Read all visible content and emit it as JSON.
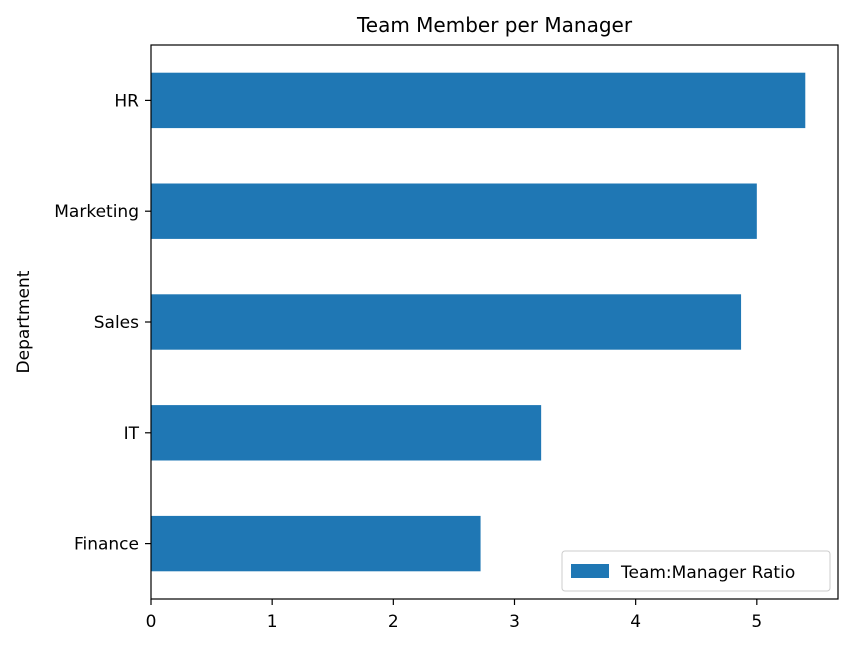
{
  "chart_data": {
    "type": "bar",
    "orientation": "horizontal",
    "title": "Team Member per Manager",
    "xlabel": "",
    "ylabel": "Department",
    "categories": [
      "Finance",
      "IT",
      "Sales",
      "Marketing",
      "HR"
    ],
    "series": [
      {
        "name": "Team:Manager Ratio",
        "values": [
          2.72,
          3.22,
          4.87,
          5.0,
          5.4
        ],
        "color": "#1f77b4"
      }
    ],
    "xlim": [
      0,
      5.67
    ],
    "xticks": [
      "0",
      "1",
      "2",
      "3",
      "4",
      "5"
    ],
    "grid": false,
    "legend_position": "lower-right"
  }
}
